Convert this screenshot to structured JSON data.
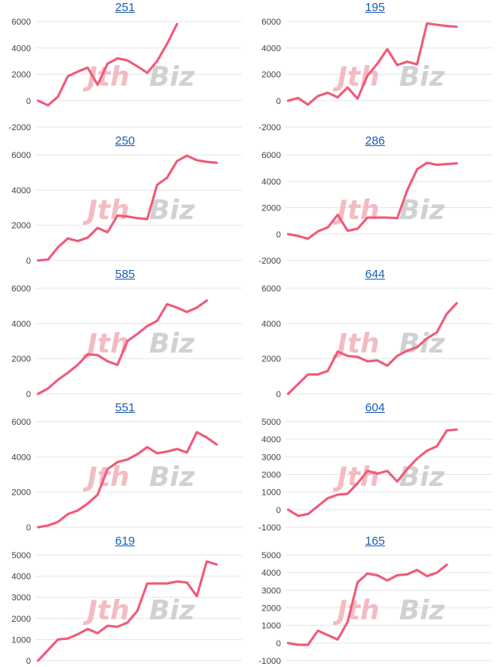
{
  "chart_data": [
    {
      "type": "line",
      "title": "251",
      "ylim": [
        -2000,
        6000
      ],
      "yticks": [
        -2000,
        0,
        2000,
        4000,
        6000
      ],
      "series": [
        {
          "values": [
            0,
            -350,
            300,
            1850,
            2200,
            2500,
            1200,
            2800,
            3200,
            3050,
            2600,
            2100,
            3000,
            4300,
            5800
          ]
        }
      ]
    },
    {
      "type": "line",
      "title": "195",
      "ylim": [
        -2000,
        6000
      ],
      "yticks": [
        -2000,
        0,
        2000,
        4000,
        6000
      ],
      "series": [
        {
          "values": [
            0,
            200,
            -300,
            350,
            600,
            250,
            1000,
            150,
            1900,
            2800,
            3900,
            2700,
            2950,
            2750,
            5850,
            5750,
            5650,
            5600
          ]
        }
      ]
    },
    {
      "type": "line",
      "title": "250",
      "ylim": [
        0,
        6000
      ],
      "yticks": [
        0,
        2000,
        4000,
        6000
      ],
      "series": [
        {
          "values": [
            0,
            50,
            750,
            1250,
            1100,
            1300,
            1850,
            1600,
            2550,
            2500,
            2400,
            2350,
            4300,
            4700,
            5650,
            5950,
            5700,
            5600,
            5550
          ]
        }
      ]
    },
    {
      "type": "line",
      "title": "286",
      "ylim": [
        -2000,
        6000
      ],
      "yticks": [
        -2000,
        0,
        2000,
        4000,
        6000
      ],
      "series": [
        {
          "values": [
            0,
            -150,
            -350,
            200,
            500,
            1450,
            250,
            400,
            1250,
            1250,
            1250,
            1200,
            3300,
            4900,
            5400,
            5250,
            5300,
            5350
          ]
        }
      ]
    },
    {
      "type": "line",
      "title": "585",
      "ylim": [
        0,
        6000
      ],
      "yticks": [
        0,
        2000,
        4000,
        6000
      ],
      "series": [
        {
          "values": [
            0,
            300,
            800,
            1200,
            1650,
            2250,
            2200,
            1850,
            1650,
            3000,
            3400,
            3850,
            4150,
            5100,
            4900,
            4650,
            4900,
            5300
          ]
        }
      ]
    },
    {
      "type": "line",
      "title": "644",
      "ylim": [
        0,
        6000
      ],
      "yticks": [
        0,
        2000,
        4000,
        6000
      ],
      "series": [
        {
          "values": [
            0,
            550,
            1100,
            1100,
            1300,
            2400,
            2150,
            2100,
            1850,
            1900,
            1600,
            2150,
            2450,
            2650,
            3150,
            3500,
            4550,
            5150
          ]
        }
      ]
    },
    {
      "type": "line",
      "title": "551",
      "ylim": [
        0,
        6000
      ],
      "yticks": [
        0,
        2000,
        4000,
        6000
      ],
      "series": [
        {
          "values": [
            0,
            100,
            300,
            750,
            950,
            1350,
            1850,
            3300,
            3700,
            3850,
            4150,
            4550,
            4200,
            4300,
            4450,
            4250,
            5400,
            5100,
            4700
          ]
        }
      ]
    },
    {
      "type": "line",
      "title": "604",
      "ylim": [
        -1000,
        5000
      ],
      "yticks": [
        -1000,
        0,
        1000,
        2000,
        3000,
        4000,
        5000
      ],
      "series": [
        {
          "values": [
            0,
            -350,
            -250,
            200,
            650,
            850,
            900,
            1500,
            2200,
            2050,
            2200,
            1600,
            2300,
            2900,
            3350,
            3600,
            4500,
            4550
          ]
        }
      ]
    },
    {
      "type": "line",
      "title": "619",
      "ylim": [
        0,
        5000
      ],
      "yticks": [
        0,
        1000,
        2000,
        3000,
        4000,
        5000
      ],
      "series": [
        {
          "values": [
            0,
            500,
            1000,
            1050,
            1250,
            1500,
            1300,
            1650,
            1600,
            1800,
            2350,
            3650,
            3650,
            3650,
            3750,
            3700,
            3050,
            4700,
            4550
          ]
        }
      ]
    },
    {
      "type": "line",
      "title": "165",
      "ylim": [
        -1000,
        5000
      ],
      "yticks": [
        -1000,
        0,
        1000,
        2000,
        3000,
        4000,
        5000
      ],
      "series": [
        {
          "values": [
            0,
            -100,
            -100,
            700,
            450,
            200,
            1200,
            3450,
            3950,
            3850,
            3550,
            3850,
            3900,
            4150,
            3800,
            4000,
            4450
          ]
        }
      ]
    }
  ],
  "colors": {
    "line": "#f05a78",
    "grid": "#e6e6e6",
    "title": "#1a5fb4",
    "watermark_red": "#f2b0b8",
    "watermark_gray": "#c9c9c9"
  }
}
